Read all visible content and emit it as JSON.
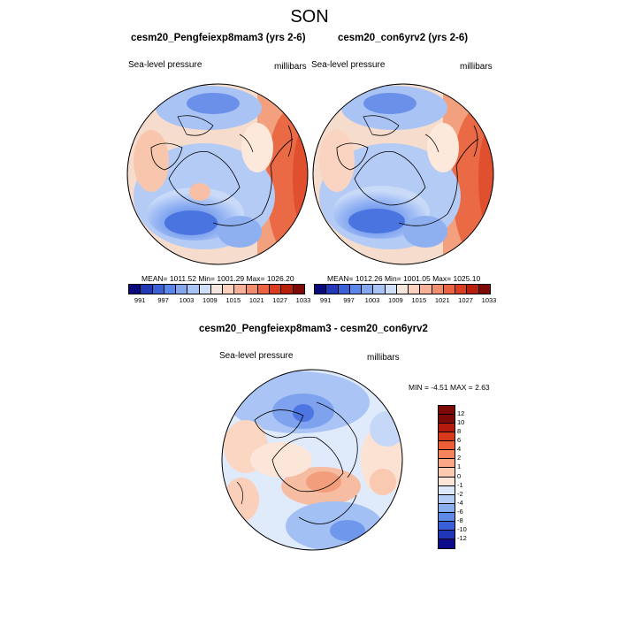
{
  "figure_title": "SON",
  "panels": [
    {
      "title": "cesm20_Pengfeiexp8mam3 (yrs 2-6)",
      "variable": "Sea-level pressure",
      "units": "millibars",
      "stats": "MEAN= 1011.52  Min= 1001.29  Max= 1026.20"
    },
    {
      "title": "cesm20_con6yrv2 (yrs 2-6)",
      "variable": "Sea-level pressure",
      "units": "millibars",
      "stats": "MEAN= 1012.26  Min= 1001.05  Max= 1025.10"
    },
    {
      "title": "cesm20_Pengfeiexp8mam3 - cesm20_con6yrv2",
      "variable": "Sea-level pressure",
      "units": "millibars",
      "stats": "MIN =  -4.51 MAX =   2.63"
    }
  ],
  "colorbar_abs": {
    "colors": [
      "#0a0a7a",
      "#2238b4",
      "#3a60d8",
      "#5a86ea",
      "#82a6f0",
      "#a8c4f6",
      "#cfdffa",
      "#f4e6dc",
      "#fbd1bd",
      "#f8b196",
      "#f28d6c",
      "#ea6444",
      "#db3c20",
      "#b81e0c",
      "#7d0a06"
    ],
    "tick_labels": [
      "991",
      "997",
      "1003",
      "1009",
      "1015",
      "1021",
      "1027",
      "1033"
    ]
  },
  "colorbar_diff": {
    "colors": [
      "#7d0a06",
      "#b31c0c",
      "#d63a1a",
      "#ec5e36",
      "#f5845c",
      "#f9a787",
      "#fcc9b1",
      "#fde6d8",
      "#dde9fb",
      "#b4cdf6",
      "#8aaff0",
      "#5e89e6",
      "#3a5fd8",
      "#2036b8",
      "#0a0a8a"
    ],
    "tick_labels": [
      "12",
      "10",
      "8",
      "6",
      "4",
      "2",
      "1",
      "0",
      "-1",
      "-2",
      "-4",
      "-6",
      "-8",
      "-10",
      "-12"
    ]
  }
}
